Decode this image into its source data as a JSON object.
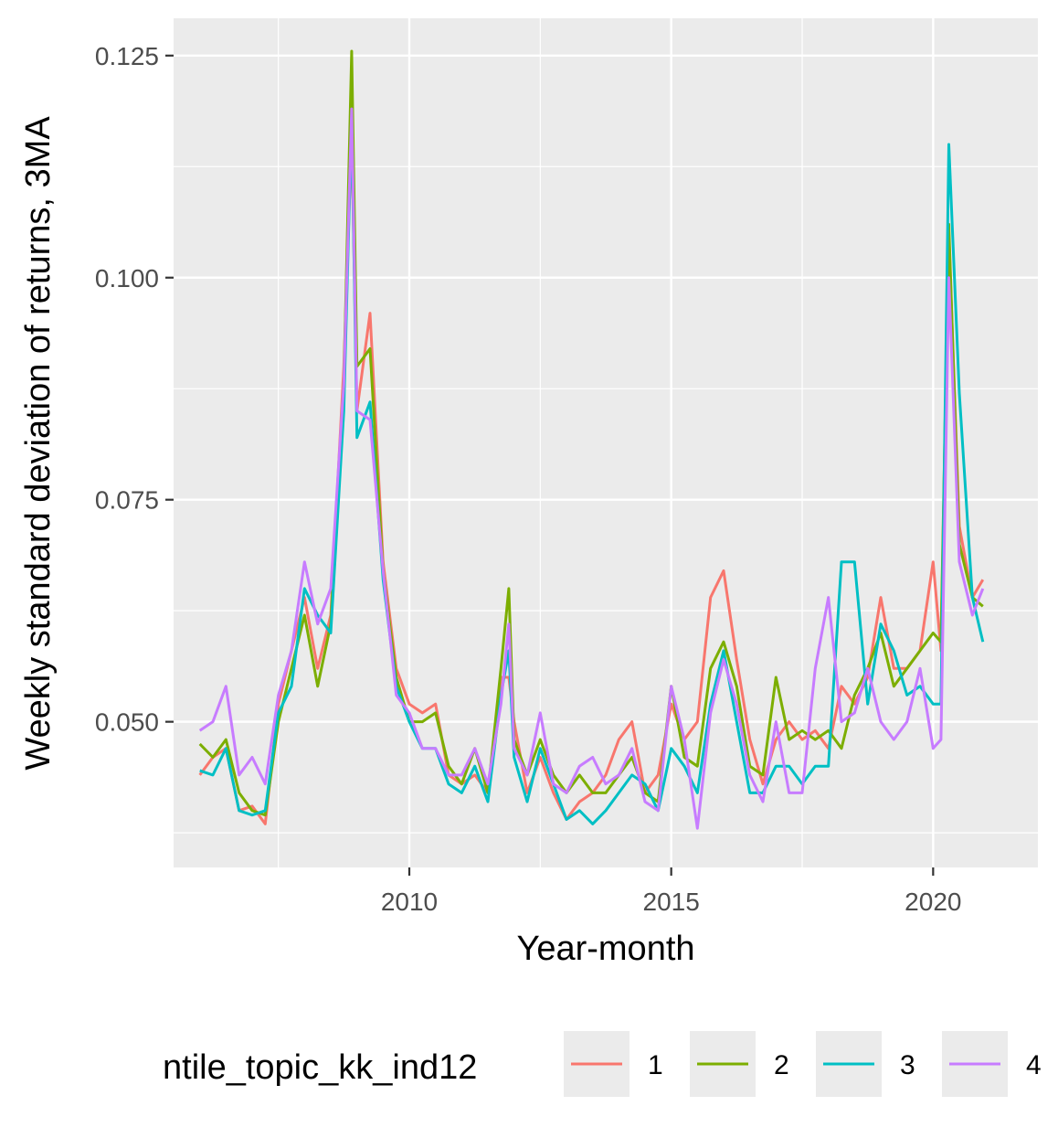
{
  "chart_data": {
    "type": "line",
    "title": "",
    "xlabel": "Year-month",
    "ylabel": "Weekly standard deviation of returns, 3MA",
    "xlim": [
      2005.5,
      2022.0
    ],
    "ylim": [
      0.0336,
      0.1292
    ],
    "x_ticks": [
      2010,
      2015,
      2020
    ],
    "x_tick_labels": [
      "2010",
      "2015",
      "2020"
    ],
    "y_ticks": [
      0.05,
      0.075,
      0.1,
      0.125
    ],
    "y_tick_labels": [
      "0.050",
      "0.075",
      "0.100",
      "0.125"
    ],
    "grid": true,
    "legend": {
      "title": "ntile_topic_kk_ind12",
      "position": "bottom",
      "entries": [
        "1",
        "2",
        "3",
        "4"
      ]
    },
    "x": [
      2006.0,
      2006.25,
      2006.5,
      2006.75,
      2007.0,
      2007.25,
      2007.5,
      2007.75,
      2008.0,
      2008.25,
      2008.5,
      2008.75,
      2008.9,
      2009.0,
      2009.25,
      2009.5,
      2009.75,
      2010.0,
      2010.25,
      2010.5,
      2010.75,
      2011.0,
      2011.25,
      2011.5,
      2011.75,
      2011.9,
      2012.0,
      2012.25,
      2012.5,
      2012.75,
      2013.0,
      2013.25,
      2013.5,
      2013.75,
      2014.0,
      2014.25,
      2014.5,
      2014.75,
      2015.0,
      2015.25,
      2015.5,
      2015.75,
      2016.0,
      2016.25,
      2016.5,
      2016.75,
      2017.0,
      2017.25,
      2017.5,
      2017.75,
      2018.0,
      2018.25,
      2018.5,
      2018.75,
      2019.0,
      2019.25,
      2019.5,
      2019.75,
      2020.0,
      2020.15,
      2020.3,
      2020.5,
      2020.75,
      2020.95
    ],
    "series": [
      {
        "name": "1",
        "color": "#F8766D",
        "values": [
          0.044,
          0.046,
          0.047,
          0.04,
          0.0405,
          0.0385,
          0.052,
          0.058,
          0.064,
          0.056,
          0.062,
          0.09,
          0.116,
          0.085,
          0.096,
          0.068,
          0.056,
          0.052,
          0.051,
          0.052,
          0.044,
          0.043,
          0.044,
          0.042,
          0.055,
          0.055,
          0.05,
          0.042,
          0.046,
          0.042,
          0.039,
          0.041,
          0.042,
          0.044,
          0.048,
          0.05,
          0.042,
          0.044,
          0.052,
          0.048,
          0.05,
          0.064,
          0.067,
          0.057,
          0.048,
          0.043,
          0.048,
          0.05,
          0.048,
          0.049,
          0.047,
          0.054,
          0.052,
          0.055,
          0.064,
          0.056,
          0.056,
          0.058,
          0.068,
          0.058,
          0.105,
          0.072,
          0.064,
          0.066
        ]
      },
      {
        "name": "2",
        "color": "#7CAE00",
        "values": [
          0.0475,
          0.046,
          0.048,
          0.042,
          0.04,
          0.0395,
          0.05,
          0.056,
          0.062,
          0.054,
          0.061,
          0.088,
          0.1255,
          0.09,
          0.092,
          0.067,
          0.055,
          0.05,
          0.05,
          0.051,
          0.045,
          0.043,
          0.047,
          0.042,
          0.056,
          0.065,
          0.048,
          0.044,
          0.048,
          0.044,
          0.042,
          0.044,
          0.042,
          0.042,
          0.044,
          0.046,
          0.042,
          0.041,
          0.054,
          0.046,
          0.045,
          0.056,
          0.059,
          0.054,
          0.045,
          0.044,
          0.055,
          0.048,
          0.049,
          0.048,
          0.049,
          0.047,
          0.053,
          0.056,
          0.06,
          0.054,
          0.056,
          0.058,
          0.06,
          0.059,
          0.106,
          0.07,
          0.064,
          0.063
        ]
      },
      {
        "name": "3",
        "color": "#00BFC4",
        "values": [
          0.0445,
          0.044,
          0.047,
          0.04,
          0.0395,
          0.04,
          0.051,
          0.054,
          0.065,
          0.062,
          0.06,
          0.085,
          0.118,
          0.082,
          0.086,
          0.066,
          0.054,
          0.05,
          0.047,
          0.047,
          0.043,
          0.042,
          0.045,
          0.041,
          0.053,
          0.058,
          0.046,
          0.041,
          0.047,
          0.043,
          0.039,
          0.04,
          0.0385,
          0.04,
          0.042,
          0.044,
          0.043,
          0.04,
          0.047,
          0.045,
          0.042,
          0.052,
          0.058,
          0.05,
          0.042,
          0.042,
          0.045,
          0.045,
          0.043,
          0.045,
          0.045,
          0.068,
          0.068,
          0.052,
          0.061,
          0.058,
          0.053,
          0.054,
          0.052,
          0.052,
          0.115,
          0.087,
          0.064,
          0.059
        ]
      },
      {
        "name": "4",
        "color": "#C77CFF",
        "values": [
          0.049,
          0.05,
          0.054,
          0.044,
          0.046,
          0.043,
          0.053,
          0.058,
          0.068,
          0.061,
          0.065,
          0.088,
          0.119,
          0.085,
          0.084,
          0.067,
          0.053,
          0.051,
          0.047,
          0.047,
          0.044,
          0.044,
          0.047,
          0.043,
          0.052,
          0.061,
          0.047,
          0.044,
          0.051,
          0.043,
          0.042,
          0.045,
          0.046,
          0.043,
          0.044,
          0.047,
          0.041,
          0.04,
          0.054,
          0.048,
          0.038,
          0.051,
          0.057,
          0.052,
          0.044,
          0.041,
          0.05,
          0.042,
          0.042,
          0.056,
          0.064,
          0.05,
          0.051,
          0.056,
          0.05,
          0.048,
          0.05,
          0.056,
          0.047,
          0.048,
          0.1,
          0.068,
          0.062,
          0.065
        ]
      }
    ]
  }
}
